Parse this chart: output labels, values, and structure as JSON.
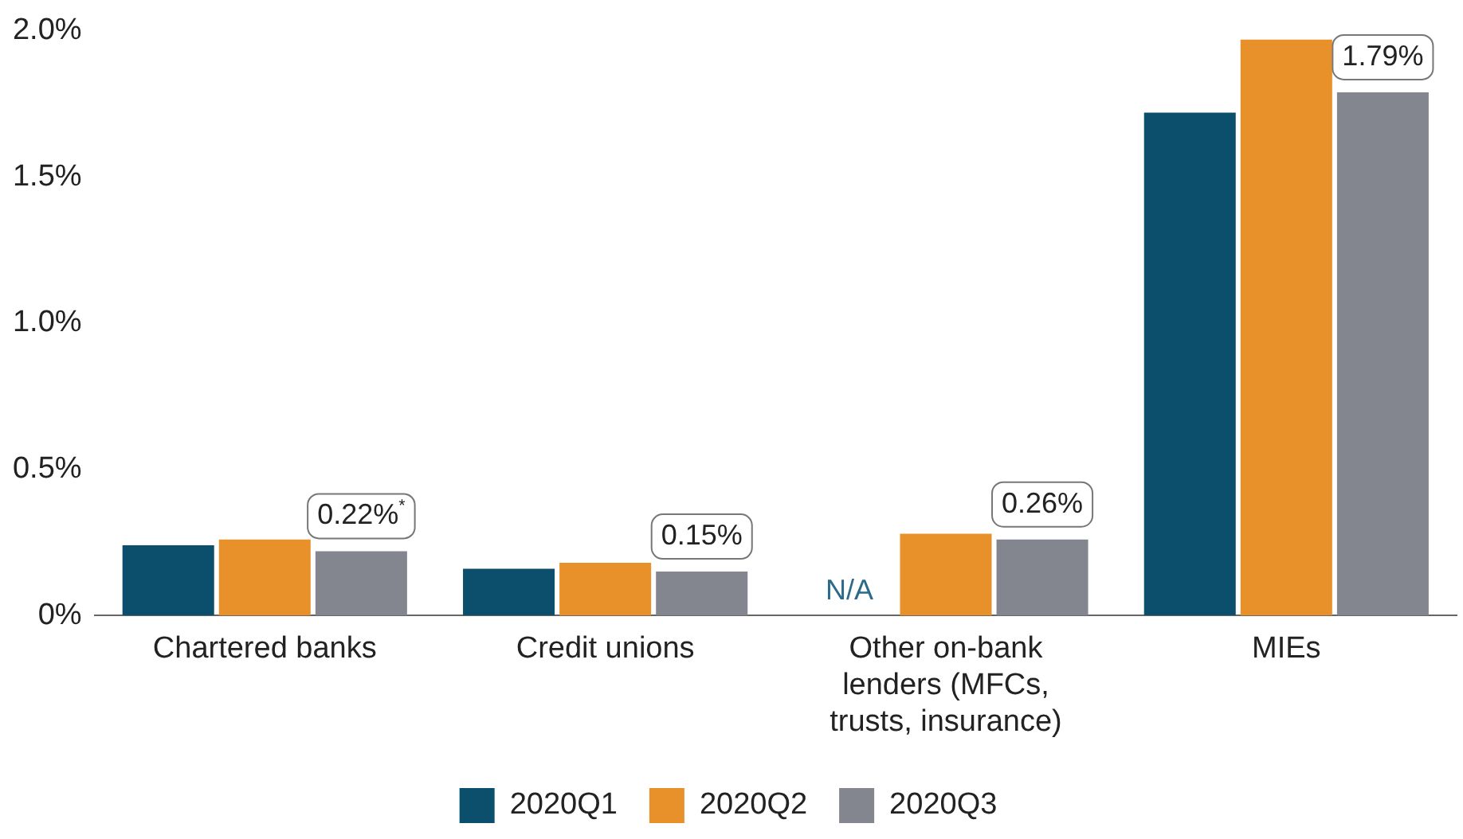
{
  "chart_data": {
    "type": "bar",
    "categories": [
      "Chartered banks",
      "Credit unions",
      "Other on-bank lenders (MFCs, trusts, insurance)",
      "MIEs"
    ],
    "series": [
      {
        "name": "2020Q1",
        "color": "#0b4f6c",
        "values": [
          0.24,
          0.16,
          null,
          1.72
        ]
      },
      {
        "name": "2020Q2",
        "color": "#e8902a",
        "values": [
          0.26,
          0.18,
          0.28,
          1.97
        ]
      },
      {
        "name": "2020Q3",
        "color": "#84868f",
        "values": [
          0.22,
          0.15,
          0.26,
          1.79
        ],
        "value_labels": [
          "0.22%$^{*}$",
          "0.15%",
          "0.26%",
          "1.79%"
        ]
      }
    ],
    "ylim": [
      0,
      2.0
    ],
    "yticks": [
      {
        "value": 0,
        "label": "0%"
      },
      {
        "value": 0.5,
        "label": "0.5%"
      },
      {
        "value": 1.0,
        "label": "1.0%"
      },
      {
        "value": 1.5,
        "label": "1.5%"
      },
      {
        "value": 2.0,
        "label": "2.0%"
      }
    ],
    "annotations": [
      {
        "text": "N/A",
        "x": "Other on-bank lenders (MFCs, trusts, insurance)",
        "y": 0
      }
    ],
    "grid": false,
    "legend": "bottom"
  }
}
